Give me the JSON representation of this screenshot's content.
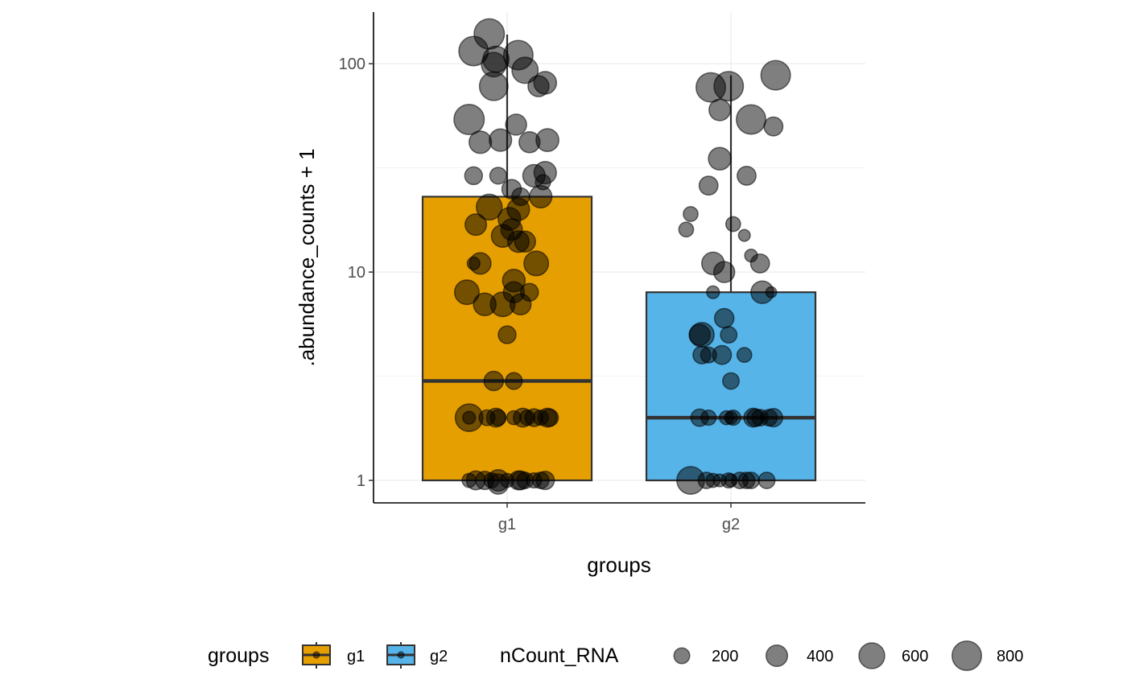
{
  "chart_data": {
    "type": "boxplot",
    "xlabel": "groups",
    "ylabel": ".abundance_counts + 1",
    "y_scale": "log10",
    "ylim": [
      0.78,
      177
    ],
    "y_ticks": [
      1,
      10,
      100
    ],
    "y_tick_labels": [
      "1",
      "10",
      "100"
    ],
    "categories": [
      "g1",
      "g2"
    ],
    "grid": true,
    "colors": {
      "g1": "#E69F00",
      "g2": "#56B4E9",
      "points": "#000000"
    },
    "boxes": [
      {
        "group": "g1",
        "whisker_low": 1,
        "q1": 1,
        "median": 3,
        "q3": 23,
        "whisker_high": 138
      },
      {
        "group": "g2",
        "whisker_low": 1,
        "q1": 1,
        "median": 2,
        "q3": 8,
        "whisker_high": 88
      }
    ],
    "points_fields": [
      "x_jitter",
      "y",
      "nCount_RNA"
    ],
    "points": {
      "g1": [
        [
          -0.08,
          139,
          850
        ],
        [
          -0.15,
          115,
          800
        ],
        [
          -0.05,
          105,
          620
        ],
        [
          0.05,
          110,
          800
        ],
        [
          -0.06,
          99,
          540
        ],
        [
          0.08,
          93,
          620
        ],
        [
          0.17,
          81,
          450
        ],
        [
          0.14,
          78,
          380
        ],
        [
          -0.06,
          78,
          750
        ],
        [
          -0.17,
          54,
          850
        ],
        [
          0.04,
          51,
          380
        ],
        [
          -0.12,
          42,
          440
        ],
        [
          -0.03,
          43,
          440
        ],
        [
          0.1,
          42,
          380
        ],
        [
          0.18,
          43,
          460
        ],
        [
          -0.15,
          29,
          260
        ],
        [
          -0.04,
          29,
          230
        ],
        [
          0.12,
          29,
          440
        ],
        [
          0.17,
          30,
          440
        ],
        [
          0.16,
          27,
          180
        ],
        [
          0.02,
          25,
          320
        ],
        [
          0.06,
          23,
          260
        ],
        [
          0.15,
          23,
          440
        ],
        [
          -0.08,
          20.5,
          600
        ],
        [
          0.05,
          20,
          440
        ],
        [
          -0.14,
          16.9,
          400
        ],
        [
          0.01,
          18,
          450
        ],
        [
          0.02,
          16,
          400
        ],
        [
          -0.02,
          14.9,
          450
        ],
        [
          0.05,
          14,
          400
        ],
        [
          0.08,
          14,
          380
        ],
        [
          -0.15,
          11,
          120
        ],
        [
          -0.12,
          11,
          400
        ],
        [
          0.13,
          11,
          540
        ],
        [
          -0.18,
          8,
          540
        ],
        [
          0.03,
          9.1,
          450
        ],
        [
          0.03,
          8,
          380
        ],
        [
          0.1,
          8,
          260
        ],
        [
          -0.1,
          7,
          450
        ],
        [
          -0.02,
          7,
          540
        ],
        [
          0.06,
          7,
          380
        ],
        [
          0.0,
          5,
          260
        ],
        [
          -0.06,
          3,
          320
        ],
        [
          0.03,
          3,
          230
        ],
        [
          -0.17,
          2,
          700
        ],
        [
          -0.17,
          2,
          120
        ],
        [
          -0.09,
          2,
          200
        ],
        [
          -0.05,
          2,
          300
        ],
        [
          -0.04,
          2,
          200
        ],
        [
          0.03,
          2,
          150
        ],
        [
          0.07,
          2,
          300
        ],
        [
          0.09,
          2,
          180
        ],
        [
          0.12,
          2,
          260
        ],
        [
          0.15,
          2,
          180
        ],
        [
          0.18,
          2,
          300
        ],
        [
          0.19,
          2,
          250
        ],
        [
          -0.17,
          1,
          150
        ],
        [
          -0.14,
          1,
          300
        ],
        [
          -0.1,
          1,
          280
        ],
        [
          -0.07,
          1,
          180
        ],
        [
          -0.04,
          1,
          400
        ],
        [
          0.0,
          1,
          150
        ],
        [
          0.05,
          1,
          300
        ],
        [
          0.06,
          1,
          300
        ],
        [
          0.08,
          1,
          220
        ],
        [
          0.12,
          1,
          180
        ],
        [
          0.15,
          1,
          220
        ],
        [
          0.17,
          1,
          280
        ],
        [
          -0.04,
          0.96,
          350
        ]
      ],
      "g2": [
        [
          0.2,
          88,
          800
        ],
        [
          -0.09,
          77,
          800
        ],
        [
          -0.01,
          78,
          800
        ],
        [
          -0.05,
          60,
          400
        ],
        [
          0.09,
          54,
          800
        ],
        [
          0.19,
          50,
          300
        ],
        [
          -0.05,
          35,
          450
        ],
        [
          0.07,
          29,
          300
        ],
        [
          -0.1,
          26,
          300
        ],
        [
          -0.18,
          19,
          170
        ],
        [
          -0.2,
          16,
          170
        ],
        [
          0.01,
          17,
          170
        ],
        [
          0.06,
          15,
          100
        ],
        [
          0.09,
          12,
          120
        ],
        [
          -0.08,
          11,
          450
        ],
        [
          0.13,
          11,
          300
        ],
        [
          -0.03,
          10,
          380
        ],
        [
          -0.08,
          8,
          120
        ],
        [
          0.14,
          8,
          450
        ],
        [
          0.18,
          8,
          80
        ],
        [
          -0.03,
          6,
          320
        ],
        [
          -0.13,
          5,
          540
        ],
        [
          -0.14,
          5,
          380
        ],
        [
          -0.01,
          5,
          220
        ],
        [
          -0.13,
          4,
          260
        ],
        [
          -0.1,
          4,
          200
        ],
        [
          -0.04,
          4,
          300
        ],
        [
          0.06,
          4,
          170
        ],
        [
          0.0,
          3,
          220
        ],
        [
          -0.14,
          2,
          250
        ],
        [
          -0.1,
          2,
          180
        ],
        [
          -0.02,
          2,
          150
        ],
        [
          0.0,
          2,
          120
        ],
        [
          0.01,
          2,
          180
        ],
        [
          0.1,
          2,
          300
        ],
        [
          0.11,
          2,
          250
        ],
        [
          0.13,
          2,
          220
        ],
        [
          0.17,
          2,
          220
        ],
        [
          0.19,
          2,
          280
        ],
        [
          -0.18,
          1,
          700
        ],
        [
          -0.11,
          1,
          220
        ],
        [
          -0.08,
          1,
          150
        ],
        [
          -0.05,
          1,
          120
        ],
        [
          -0.01,
          1,
          180
        ],
        [
          0.0,
          1,
          120
        ],
        [
          0.04,
          1,
          220
        ],
        [
          0.07,
          1,
          220
        ],
        [
          0.09,
          1,
          220
        ],
        [
          0.16,
          1,
          220
        ]
      ]
    },
    "legend": {
      "placement": "bottom",
      "fill_title": "groups",
      "fill_items": [
        "g1",
        "g2"
      ],
      "size_title": "nCount_RNA",
      "size_items": [
        200,
        400,
        600,
        800
      ],
      "size_labels": [
        "200",
        "400",
        "600",
        "800"
      ]
    }
  }
}
